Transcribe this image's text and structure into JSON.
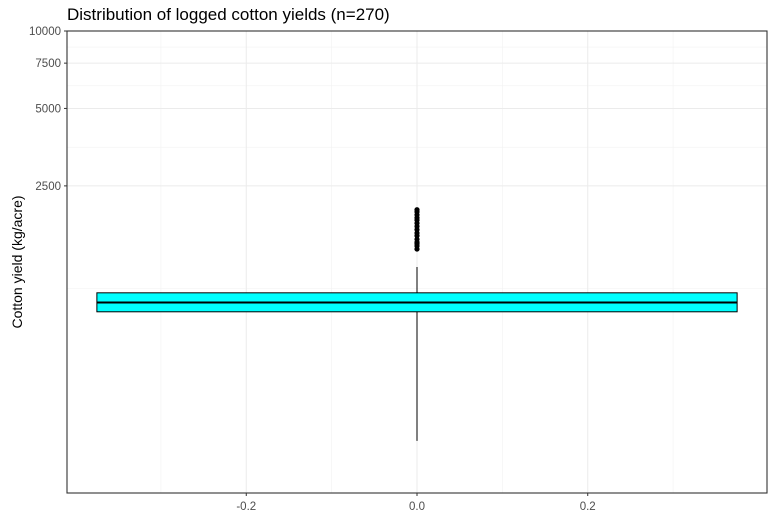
{
  "chart_data": {
    "type": "box",
    "title": "Distribution of logged cotton yields (n=270)",
    "xlabel": "",
    "ylabel": "Cotton yield (kg/acre)",
    "y_scale": "log",
    "y_ticks": [
      2500,
      5000,
      7500,
      10000
    ],
    "y_tick_labels": [
      "2500",
      "5000",
      "7500",
      "10000"
    ],
    "x_ticks": [
      -0.2,
      0.0,
      0.2
    ],
    "x_tick_labels": [
      "-0.2",
      "0.0",
      "0.2"
    ],
    "xlim": [
      -0.41,
      0.41
    ],
    "ylim": [
      160,
      10000
    ],
    "grid": true,
    "legend": "none",
    "box": {
      "x_center": 0.0,
      "x_range": [
        -0.375,
        0.375
      ],
      "fill": "#00FFFF",
      "whisker_low": 255,
      "q1": 810,
      "median": 880,
      "q3": 960,
      "whisker_high": 1210,
      "outliers": [
        1420,
        1460,
        1490,
        1510,
        1550,
        1600,
        1640,
        1690,
        1740,
        1790,
        1840,
        1880,
        1930,
        1980,
        2020
      ]
    }
  }
}
